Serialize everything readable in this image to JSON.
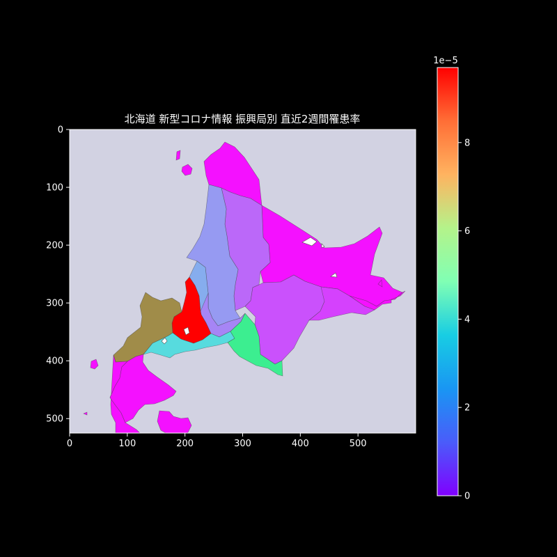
{
  "chart_data": {
    "type": "choropleth",
    "title": "北海道 新型コロナ情報 振興局別 直近2週間罹患率",
    "x_ticks": [
      0,
      100,
      200,
      300,
      400,
      500
    ],
    "y_ticks": [
      0,
      100,
      200,
      300,
      400,
      500
    ],
    "xlim": [
      0,
      600
    ],
    "ylim": [
      525,
      0
    ],
    "colormap": "rainbow",
    "colorbar": {
      "min": 0,
      "max": 9.7,
      "ticks": [
        0,
        2,
        4,
        6,
        8
      ],
      "scale_label": "1e−5"
    },
    "background": "#d2d2e2",
    "regions": [
      {
        "value": 0.2
      },
      {
        "value": 0.2
      },
      {
        "value": 0.2
      },
      {
        "value": 0.2
      },
      {
        "value": 1.3
      },
      {
        "value": 1.0
      },
      {
        "value": 2.0
      },
      {
        "value": 2.3
      },
      {
        "value": 0.8
      },
      {
        "value": 1.7
      },
      {
        "value": 9.7
      },
      {
        "value": 7.9
      },
      {
        "value": 0.2
      },
      {
        "value": 3.2
      },
      {
        "value": 6.0
      },
      {
        "value": 0.2
      },
      {
        "value": 0.2
      },
      {
        "value": 0.2
      },
      {
        "value": 0.2
      },
      {
        "value": 0.2
      }
    ]
  }
}
